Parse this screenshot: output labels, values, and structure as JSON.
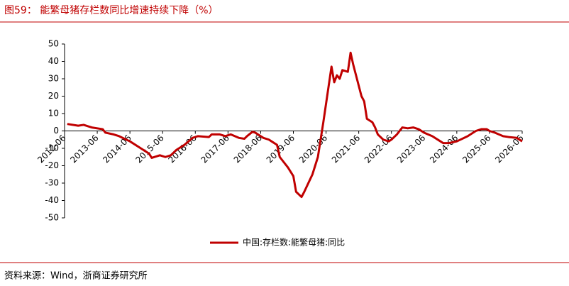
{
  "chart_data": {
    "type": "line",
    "title": "图59：  能繁母猪存栏数同比增速持续下降（%）",
    "source": "资料来源：Wind，浙商证券研究所",
    "x": [
      "2012-07",
      "2012-11",
      "2013-01",
      "2013-04",
      "2013-08",
      "2013-09",
      "2013-12",
      "2014-02",
      "2014-06",
      "2014-10",
      "2015-01",
      "2015-02",
      "2015-05",
      "2015-07",
      "2015-09",
      "2015-11",
      "2016-02",
      "2016-05",
      "2016-07",
      "2016-11",
      "2016-12",
      "2017-03",
      "2017-05",
      "2017-07",
      "2017-10",
      "2017-12",
      "2018-01",
      "2018-03",
      "2018-04",
      "2018-06",
      "2018-07",
      "2018-09",
      "2018-12",
      "2019-01",
      "2019-04",
      "2019-06",
      "2019-07",
      "2019-09",
      "2019-10",
      "2020-01",
      "2020-03",
      "2020-05",
      "2020-08",
      "2020-09",
      "2020-10",
      "2020-11",
      "2020-12",
      "2021-02",
      "2021-03",
      "2021-04",
      "2021-07",
      "2021-08",
      "2021-09",
      "2021-11",
      "2021-12",
      "2022-01",
      "2022-03",
      "2022-05",
      "2022-06",
      "2022-08",
      "2022-10",
      "2022-12",
      "2023-02",
      "2023-04",
      "2023-06",
      "2023-09",
      "2023-12",
      "2024-01",
      "2024-03",
      "2024-06",
      "2024-10",
      "2025-01",
      "2025-03",
      "2025-05",
      "2025-06",
      "2025-08",
      "2025-11",
      "2026-01",
      "2026-04",
      "2026-06"
    ],
    "series": [
      {
        "name": "中国:存栏数:能繁母猪:同比",
        "color": "#c00000",
        "values": [
          4,
          3,
          3.5,
          2,
          1,
          -1,
          -2,
          -3,
          -6,
          -10,
          -13,
          -15.5,
          -14,
          -15,
          -14,
          -11,
          -8,
          -4,
          -3,
          -3.5,
          -2,
          -2,
          -3,
          -2,
          -4,
          -4.5,
          -3,
          -0.5,
          -1,
          -3,
          -4,
          -5,
          -8,
          -15,
          -21,
          -26,
          -35,
          -38,
          -35,
          -25,
          -15,
          5,
          37,
          28,
          32,
          30,
          35,
          34,
          45,
          38,
          20,
          17,
          7,
          5,
          2,
          -2,
          -5,
          -6,
          -5,
          -2,
          2,
          1.5,
          2,
          1,
          -1,
          -3,
          -6,
          -7,
          -7,
          -6,
          -3,
          0,
          1,
          1,
          0,
          -1,
          -3,
          -3.5,
          -4,
          -6
        ]
      }
    ],
    "xlim": [
      "2012-06",
      "2026-06"
    ],
    "xticks": [
      "2012-06",
      "2013-06",
      "2014-06",
      "2015-06",
      "2016-06",
      "2017-06",
      "2018-06",
      "2019-06",
      "2020-06",
      "2021-06",
      "2022-06",
      "2023-06",
      "2024-06",
      "2025-06",
      "2026-06"
    ],
    "ylim": [
      -50,
      50
    ],
    "yticks": [
      -50,
      -40,
      -30,
      -20,
      -10,
      0,
      10,
      20,
      30,
      40,
      50
    ],
    "legend": "bottom"
  }
}
